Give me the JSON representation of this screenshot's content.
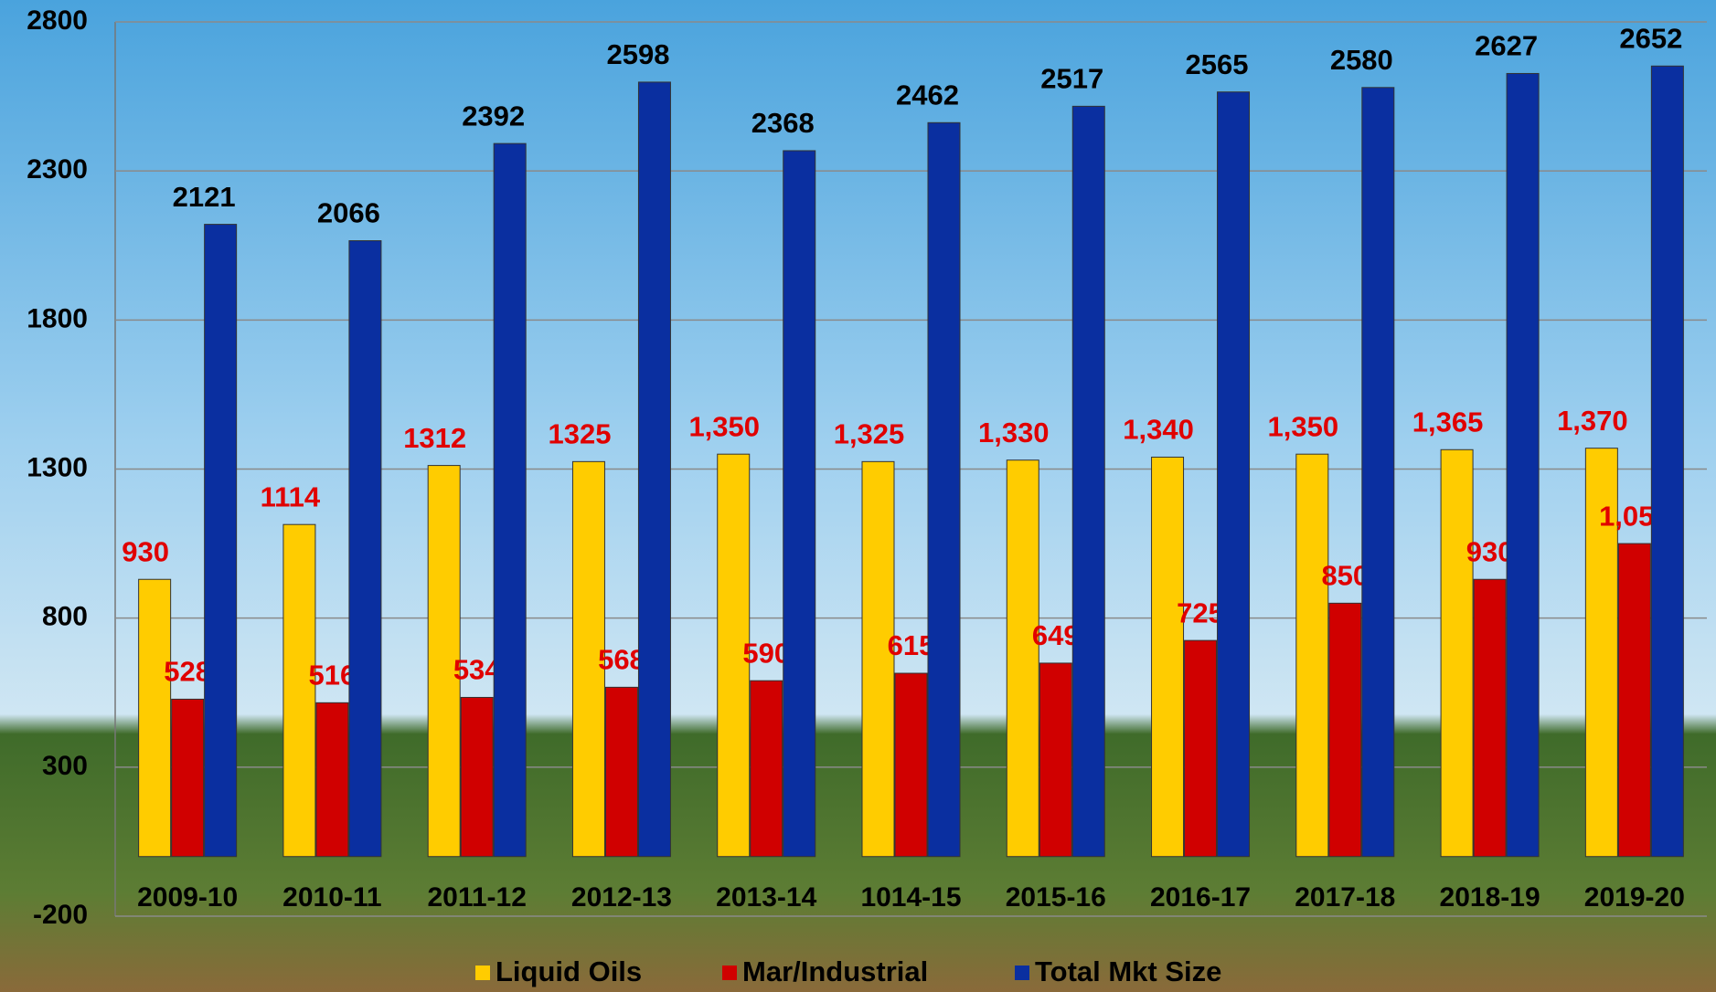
{
  "chart_data": {
    "type": "bar",
    "categories": [
      "2009-10",
      "2010-11",
      "2011-12",
      "2012-13",
      "2013-14",
      "1014-15",
      "2015-16",
      "2016-17",
      "2017-18",
      "2018-19",
      "2019-20"
    ],
    "series": [
      {
        "name": "Liquid Oils",
        "color": "#ffcc00",
        "label_color": "#e00000",
        "values": [
          930,
          1114,
          1312,
          1325,
          1350,
          1325,
          1330,
          1340,
          1350,
          1365,
          1370
        ],
        "value_labels": [
          "930",
          "1114",
          "1312",
          "1325",
          "1,350",
          "1,325",
          "1,330",
          "1,340",
          "1,350",
          "1,365",
          "1,370"
        ]
      },
      {
        "name": "Mar/Industrial",
        "color": "#d00000",
        "label_color": "#e00000",
        "values": [
          528,
          516,
          534,
          568,
          590,
          615,
          649,
          725,
          850,
          930,
          1050
        ],
        "value_labels": [
          "528",
          "516",
          "534",
          "568",
          "590",
          "615",
          "649",
          "725",
          "850",
          "930",
          "1,050"
        ]
      },
      {
        "name": "Total Mkt Size",
        "color": "#0a2fa0",
        "label_color": "#000000",
        "values": [
          2121,
          2066,
          2392,
          2598,
          2368,
          2462,
          2517,
          2565,
          2580,
          2627,
          2652
        ]
      }
    ],
    "ylim": [
      -200,
      2800
    ],
    "yticks": [
      -200,
      300,
      800,
      1300,
      1800,
      2300,
      2800
    ],
    "grid": true
  }
}
